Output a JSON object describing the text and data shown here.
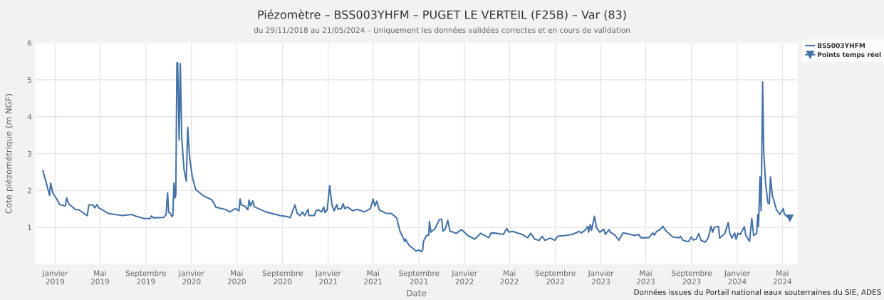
{
  "chart_data": {
    "type": "line",
    "title": "Piézomètre – BSS003YHFM – PUGET LE VERTEIL (F25B) – Var (83)",
    "subtitle": "du 29/11/2018 au 21/05/2024 – Uniquement les données validées correctes et en cours de validation",
    "xlabel": "Date",
    "ylabel": "Cote piézométrique (m NGF)",
    "annotations": [
      "Données issues du Portail national eaux souterraines du SIE, ADES"
    ],
    "xlim": [
      "2018-11-09",
      "2024-06-10"
    ],
    "ylim": [
      0,
      6
    ],
    "xticks": [
      {
        "value": "2019-01-01",
        "label": "Janvier\n2019"
      },
      {
        "value": "2019-05-01",
        "label": "Mai\n2019"
      },
      {
        "value": "2019-09-01",
        "label": "Septembre\n2019"
      },
      {
        "value": "2020-01-01",
        "label": "Janvier\n2020"
      },
      {
        "value": "2020-05-01",
        "label": "Mai\n2020"
      },
      {
        "value": "2020-09-01",
        "label": "Septembre\n2020"
      },
      {
        "value": "2021-01-01",
        "label": "Janvier\n2021"
      },
      {
        "value": "2021-05-01",
        "label": "Mai\n2021"
      },
      {
        "value": "2021-09-01",
        "label": "Septembre\n2021"
      },
      {
        "value": "2022-01-01",
        "label": "Janvier\n2022"
      },
      {
        "value": "2022-05-01",
        "label": "Mai\n2022"
      },
      {
        "value": "2022-09-01",
        "label": "Septembre\n2022"
      },
      {
        "value": "2023-01-01",
        "label": "Janvier\n2023"
      },
      {
        "value": "2023-05-01",
        "label": "Mai\n2023"
      },
      {
        "value": "2023-09-01",
        "label": "Septembre\n2023"
      },
      {
        "value": "2024-01-01",
        "label": "Janvier\n2024"
      },
      {
        "value": "2024-05-01",
        "label": "Mai\n2024"
      }
    ],
    "yticks": [
      {
        "value": 0,
        "label": null
      },
      1,
      2,
      3,
      4,
      5,
      6
    ],
    "grid": true,
    "legend": "top right",
    "series": [
      {
        "name": "BSS003YHFM",
        "color": "#4572a7",
        "marker": "none",
        "x": [
          "2018-11-29",
          "2018-12-07",
          "2018-12-12",
          "2018-12-17",
          "2018-12-20",
          "2018-12-26",
          "2019-01-07",
          "2019-01-13",
          "2019-01-28",
          "2019-02-01",
          "2019-02-06",
          "2019-02-25",
          "2019-03-05",
          "2019-03-28",
          "2019-04-01",
          "2019-04-12",
          "2019-04-17",
          "2019-04-23",
          "2019-04-28",
          "2019-05-23",
          "2019-06-30",
          "2019-07-25",
          "2019-08-06",
          "2019-08-28",
          "2019-09-12",
          "2019-09-16",
          "2019-09-21",
          "2019-10-19",
          "2019-10-25",
          "2019-10-29",
          "2019-11-01",
          "2019-11-05",
          "2019-11-10",
          "2019-11-12",
          "2019-11-15",
          "2019-11-18",
          "2019-11-20",
          "2019-11-23",
          "2019-11-25",
          "2019-11-29",
          "2019-12-02",
          "2019-12-06",
          "2019-12-12",
          "2019-12-18",
          "2019-12-22",
          "2019-12-27",
          "2020-01-03",
          "2020-01-12",
          "2020-01-31",
          "2020-02-25",
          "2020-03-03",
          "2020-03-06",
          "2020-04-03",
          "2020-04-12",
          "2020-04-28",
          "2020-05-07",
          "2020-05-10",
          "2020-05-13",
          "2020-05-22",
          "2020-05-31",
          "2020-06-03",
          "2020-06-07",
          "2020-06-13",
          "2020-06-17",
          "2020-07-18",
          "2020-08-25",
          "2020-09-15",
          "2020-09-21",
          "2020-10-04",
          "2020-10-10",
          "2020-10-18",
          "2020-10-24",
          "2020-10-30",
          "2020-11-08",
          "2020-11-10",
          "2020-11-25",
          "2020-11-29",
          "2020-12-05",
          "2020-12-14",
          "2020-12-20",
          "2020-12-23",
          "2020-12-29",
          "2021-01-05",
          "2021-01-11",
          "2021-01-17",
          "2021-01-24",
          "2021-01-27",
          "2021-02-05",
          "2021-02-10",
          "2021-02-14",
          "2021-02-22",
          "2021-03-08",
          "2021-03-20",
          "2021-04-08",
          "2021-04-24",
          "2021-05-01",
          "2021-05-06",
          "2021-05-11",
          "2021-05-18",
          "2021-06-05",
          "2021-06-19",
          "2021-07-03",
          "2021-07-12",
          "2021-07-25",
          "2021-07-27",
          "2021-08-05",
          "2021-08-24",
          "2021-09-02",
          "2021-09-08",
          "2021-09-11",
          "2021-09-13",
          "2021-09-21",
          "2021-09-27",
          "2021-09-29",
          "2021-10-03",
          "2021-10-14",
          "2021-10-26",
          "2021-11-01",
          "2021-11-04",
          "2021-11-10",
          "2021-11-17",
          "2021-11-23",
          "2021-12-10",
          "2021-12-24",
          "2022-01-10",
          "2022-01-28",
          "2022-02-13",
          "2022-03-07",
          "2022-03-13",
          "2022-03-29",
          "2022-04-15",
          "2022-04-24",
          "2022-04-30",
          "2022-05-10",
          "2022-06-04",
          "2022-06-19",
          "2022-06-27",
          "2022-07-08",
          "2022-07-20",
          "2022-07-28",
          "2022-08-04",
          "2022-08-19",
          "2022-08-31",
          "2022-09-07",
          "2022-09-27",
          "2022-10-16",
          "2022-11-04",
          "2022-11-10",
          "2022-11-21",
          "2022-11-27",
          "2022-11-29",
          "2022-12-04",
          "2022-12-07",
          "2022-12-10",
          "2022-12-15",
          "2022-12-20",
          "2022-12-29",
          "2023-01-09",
          "2023-01-13",
          "2023-01-23",
          "2023-01-26",
          "2023-02-08",
          "2023-02-18",
          "2023-03-01",
          "2023-03-14",
          "2023-04-01",
          "2023-04-12",
          "2023-04-18",
          "2023-05-09",
          "2023-05-20",
          "2023-05-24",
          "2023-05-30",
          "2023-06-08",
          "2023-06-16",
          "2023-06-23",
          "2023-07-12",
          "2023-07-30",
          "2023-08-02",
          "2023-08-08",
          "2023-08-18",
          "2023-08-24",
          "2023-08-31",
          "2023-09-05",
          "2023-09-13",
          "2023-09-20",
          "2023-09-26",
          "2023-10-07",
          "2023-10-15",
          "2023-10-23",
          "2023-10-27",
          "2023-11-01",
          "2023-11-07",
          "2023-11-12",
          "2023-11-15",
          "2023-11-23",
          "2023-11-29",
          "2023-12-08",
          "2023-12-12",
          "2023-12-18",
          "2023-12-25",
          "2023-12-29",
          "2024-01-03",
          "2024-01-09",
          "2024-01-20",
          "2024-01-24",
          "2024-02-03",
          "2024-02-09",
          "2024-02-14",
          "2024-02-22",
          "2024-02-25",
          "2024-02-27",
          "2024-03-02",
          "2024-03-05",
          "2024-03-09",
          "2024-03-12",
          "2024-03-17",
          "2024-03-23",
          "2024-03-27",
          "2024-03-30",
          "2024-04-04",
          "2024-04-15",
          "2024-04-24",
          "2024-05-03",
          "2024-05-06",
          "2024-05-12",
          "2024-05-21"
        ],
        "values": [
          2.54,
          2.25,
          2.06,
          1.87,
          2.2,
          1.93,
          1.74,
          1.62,
          1.58,
          1.8,
          1.64,
          1.48,
          1.48,
          1.32,
          1.61,
          1.61,
          1.53,
          1.62,
          1.53,
          1.38,
          1.32,
          1.35,
          1.3,
          1.24,
          1.24,
          1.31,
          1.26,
          1.27,
          1.35,
          1.94,
          1.41,
          1.38,
          1.29,
          1.32,
          2.2,
          1.8,
          1.87,
          5.46,
          5.46,
          3.37,
          5.44,
          3.4,
          2.57,
          2.25,
          3.71,
          2.89,
          2.38,
          2.03,
          1.87,
          1.74,
          1.62,
          1.55,
          1.48,
          1.42,
          1.51,
          1.45,
          1.77,
          1.61,
          1.58,
          1.48,
          1.74,
          1.58,
          1.72,
          1.56,
          1.42,
          1.32,
          1.29,
          1.26,
          1.61,
          1.38,
          1.32,
          1.42,
          1.32,
          1.49,
          1.32,
          1.32,
          1.45,
          1.48,
          1.42,
          1.55,
          1.4,
          1.47,
          2.13,
          1.61,
          1.45,
          1.62,
          1.49,
          1.51,
          1.64,
          1.51,
          1.55,
          1.45,
          1.49,
          1.42,
          1.51,
          1.77,
          1.58,
          1.71,
          1.47,
          1.38,
          1.38,
          1.26,
          0.9,
          0.62,
          0.68,
          0.52,
          0.36,
          0.39,
          0.34,
          0.39,
          0.62,
          0.78,
          0.79,
          1.16,
          0.87,
          0.97,
          1.22,
          1.22,
          0.9,
          0.94,
          1.19,
          0.9,
          0.84,
          0.94,
          0.78,
          0.68,
          0.84,
          0.72,
          0.85,
          0.84,
          0.81,
          0.97,
          0.87,
          0.89,
          0.81,
          0.72,
          0.84,
          0.68,
          0.65,
          0.76,
          0.65,
          0.71,
          0.65,
          0.76,
          0.78,
          0.81,
          0.89,
          0.85,
          0.94,
          1.03,
          0.87,
          1.08,
          0.92,
          1.06,
          1.3,
          1.0,
          0.87,
          0.95,
          0.81,
          0.94,
          0.87,
          0.79,
          0.65,
          0.85,
          0.83,
          0.78,
          0.81,
          0.72,
          0.72,
          0.85,
          0.79,
          0.89,
          0.94,
          1.03,
          0.92,
          0.74,
          0.72,
          0.76,
          0.66,
          0.62,
          0.62,
          0.74,
          0.66,
          0.68,
          0.83,
          0.65,
          0.6,
          0.71,
          1.03,
          0.87,
          1.0,
          1.02,
          1.02,
          0.71,
          0.78,
          0.84,
          1.13,
          0.84,
          0.71,
          0.85,
          0.68,
          0.84,
          0.81,
          1.02,
          0.78,
          0.62,
          1.24,
          0.78,
          0.84,
          1.35,
          1.03,
          2.37,
          1.45,
          4.94,
          3.02,
          2.19,
          1.67,
          1.64,
          2.37,
          1.87,
          1.48,
          1.35,
          1.51,
          1.37,
          1.3,
          1.24
        ]
      },
      {
        "name": "Points temps réel",
        "color": "#4572a7",
        "type": "scatter",
        "marker": "triangle",
        "x": [
          "2024-05-21"
        ],
        "values": [
          1.25
        ]
      }
    ]
  }
}
